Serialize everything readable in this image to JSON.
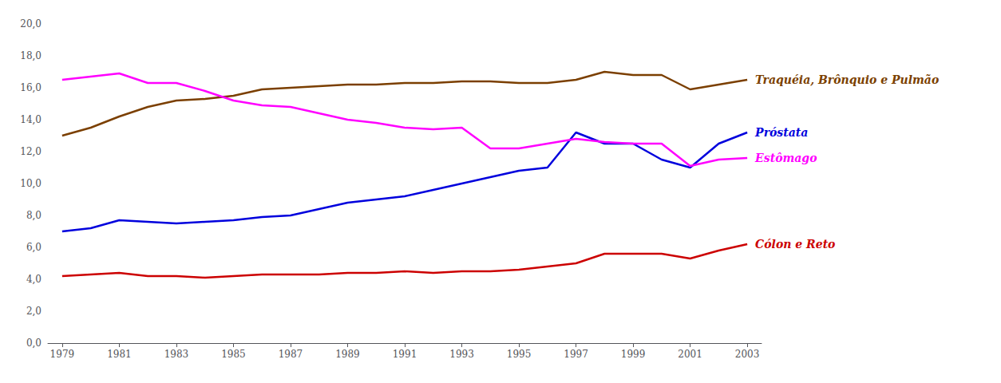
{
  "chart_data": {
    "type": "line",
    "x": [
      1979,
      1980,
      1981,
      1982,
      1983,
      1984,
      1985,
      1986,
      1987,
      1988,
      1989,
      1990,
      1991,
      1992,
      1993,
      1994,
      1995,
      1996,
      1997,
      1998,
      1999,
      2000,
      2001,
      2002,
      2003
    ],
    "xlim": [
      1978.5,
      2003.5
    ],
    "xticks": [
      1979,
      1981,
      1983,
      1985,
      1987,
      1989,
      1991,
      1993,
      1995,
      1997,
      1999,
      2001,
      2003
    ],
    "ylim": [
      0,
      20
    ],
    "yticks": [
      {
        "value": 0,
        "label": "0,0"
      },
      {
        "value": 2,
        "label": "2,0"
      },
      {
        "value": 4,
        "label": "4,0"
      },
      {
        "value": 6,
        "label": "6,0"
      },
      {
        "value": 8,
        "label": "8,0"
      },
      {
        "value": 10,
        "label": "10,0"
      },
      {
        "value": 12,
        "label": "12,0"
      },
      {
        "value": 14,
        "label": "14,0"
      },
      {
        "value": 16,
        "label": "16,0"
      },
      {
        "value": 18,
        "label": "18,0"
      },
      {
        "value": 20,
        "label": "20,0"
      }
    ],
    "grid": false,
    "marker": "none",
    "series": [
      {
        "name": "Traquéia, Brônquio e Pulmão",
        "color": "#7B3F00",
        "values": [
          13.0,
          13.5,
          14.2,
          14.8,
          15.2,
          15.3,
          15.5,
          15.9,
          16.0,
          16.1,
          16.2,
          16.2,
          16.3,
          16.3,
          16.4,
          16.4,
          16.3,
          16.3,
          16.5,
          17.0,
          16.8,
          16.8,
          15.9,
          16.2,
          16.5
        ]
      },
      {
        "name": "Próstata",
        "color": "#0000DD",
        "values": [
          7.0,
          7.2,
          7.7,
          7.6,
          7.5,
          7.6,
          7.7,
          7.9,
          8.0,
          8.4,
          8.8,
          9.0,
          9.2,
          9.6,
          10.0,
          10.4,
          10.8,
          11.0,
          13.2,
          12.5,
          12.5,
          11.5,
          11.0,
          12.5,
          13.2
        ]
      },
      {
        "name": "Estômago",
        "color": "#FF00FF",
        "values": [
          16.5,
          16.7,
          16.9,
          16.3,
          16.3,
          15.8,
          15.2,
          14.9,
          14.8,
          14.4,
          14.0,
          13.8,
          13.5,
          13.4,
          13.5,
          12.2,
          12.2,
          12.5,
          12.8,
          12.6,
          12.5,
          12.5,
          11.1,
          11.5,
          11.6
        ]
      },
      {
        "name": "Cólon e Reto",
        "color": "#CC0000",
        "values": [
          4.2,
          4.3,
          4.4,
          4.2,
          4.2,
          4.1,
          4.2,
          4.3,
          4.3,
          4.3,
          4.4,
          4.4,
          4.5,
          4.4,
          4.5,
          4.5,
          4.6,
          4.8,
          5.0,
          5.6,
          5.6,
          5.6,
          5.3,
          5.8,
          6.2
        ]
      }
    ]
  }
}
